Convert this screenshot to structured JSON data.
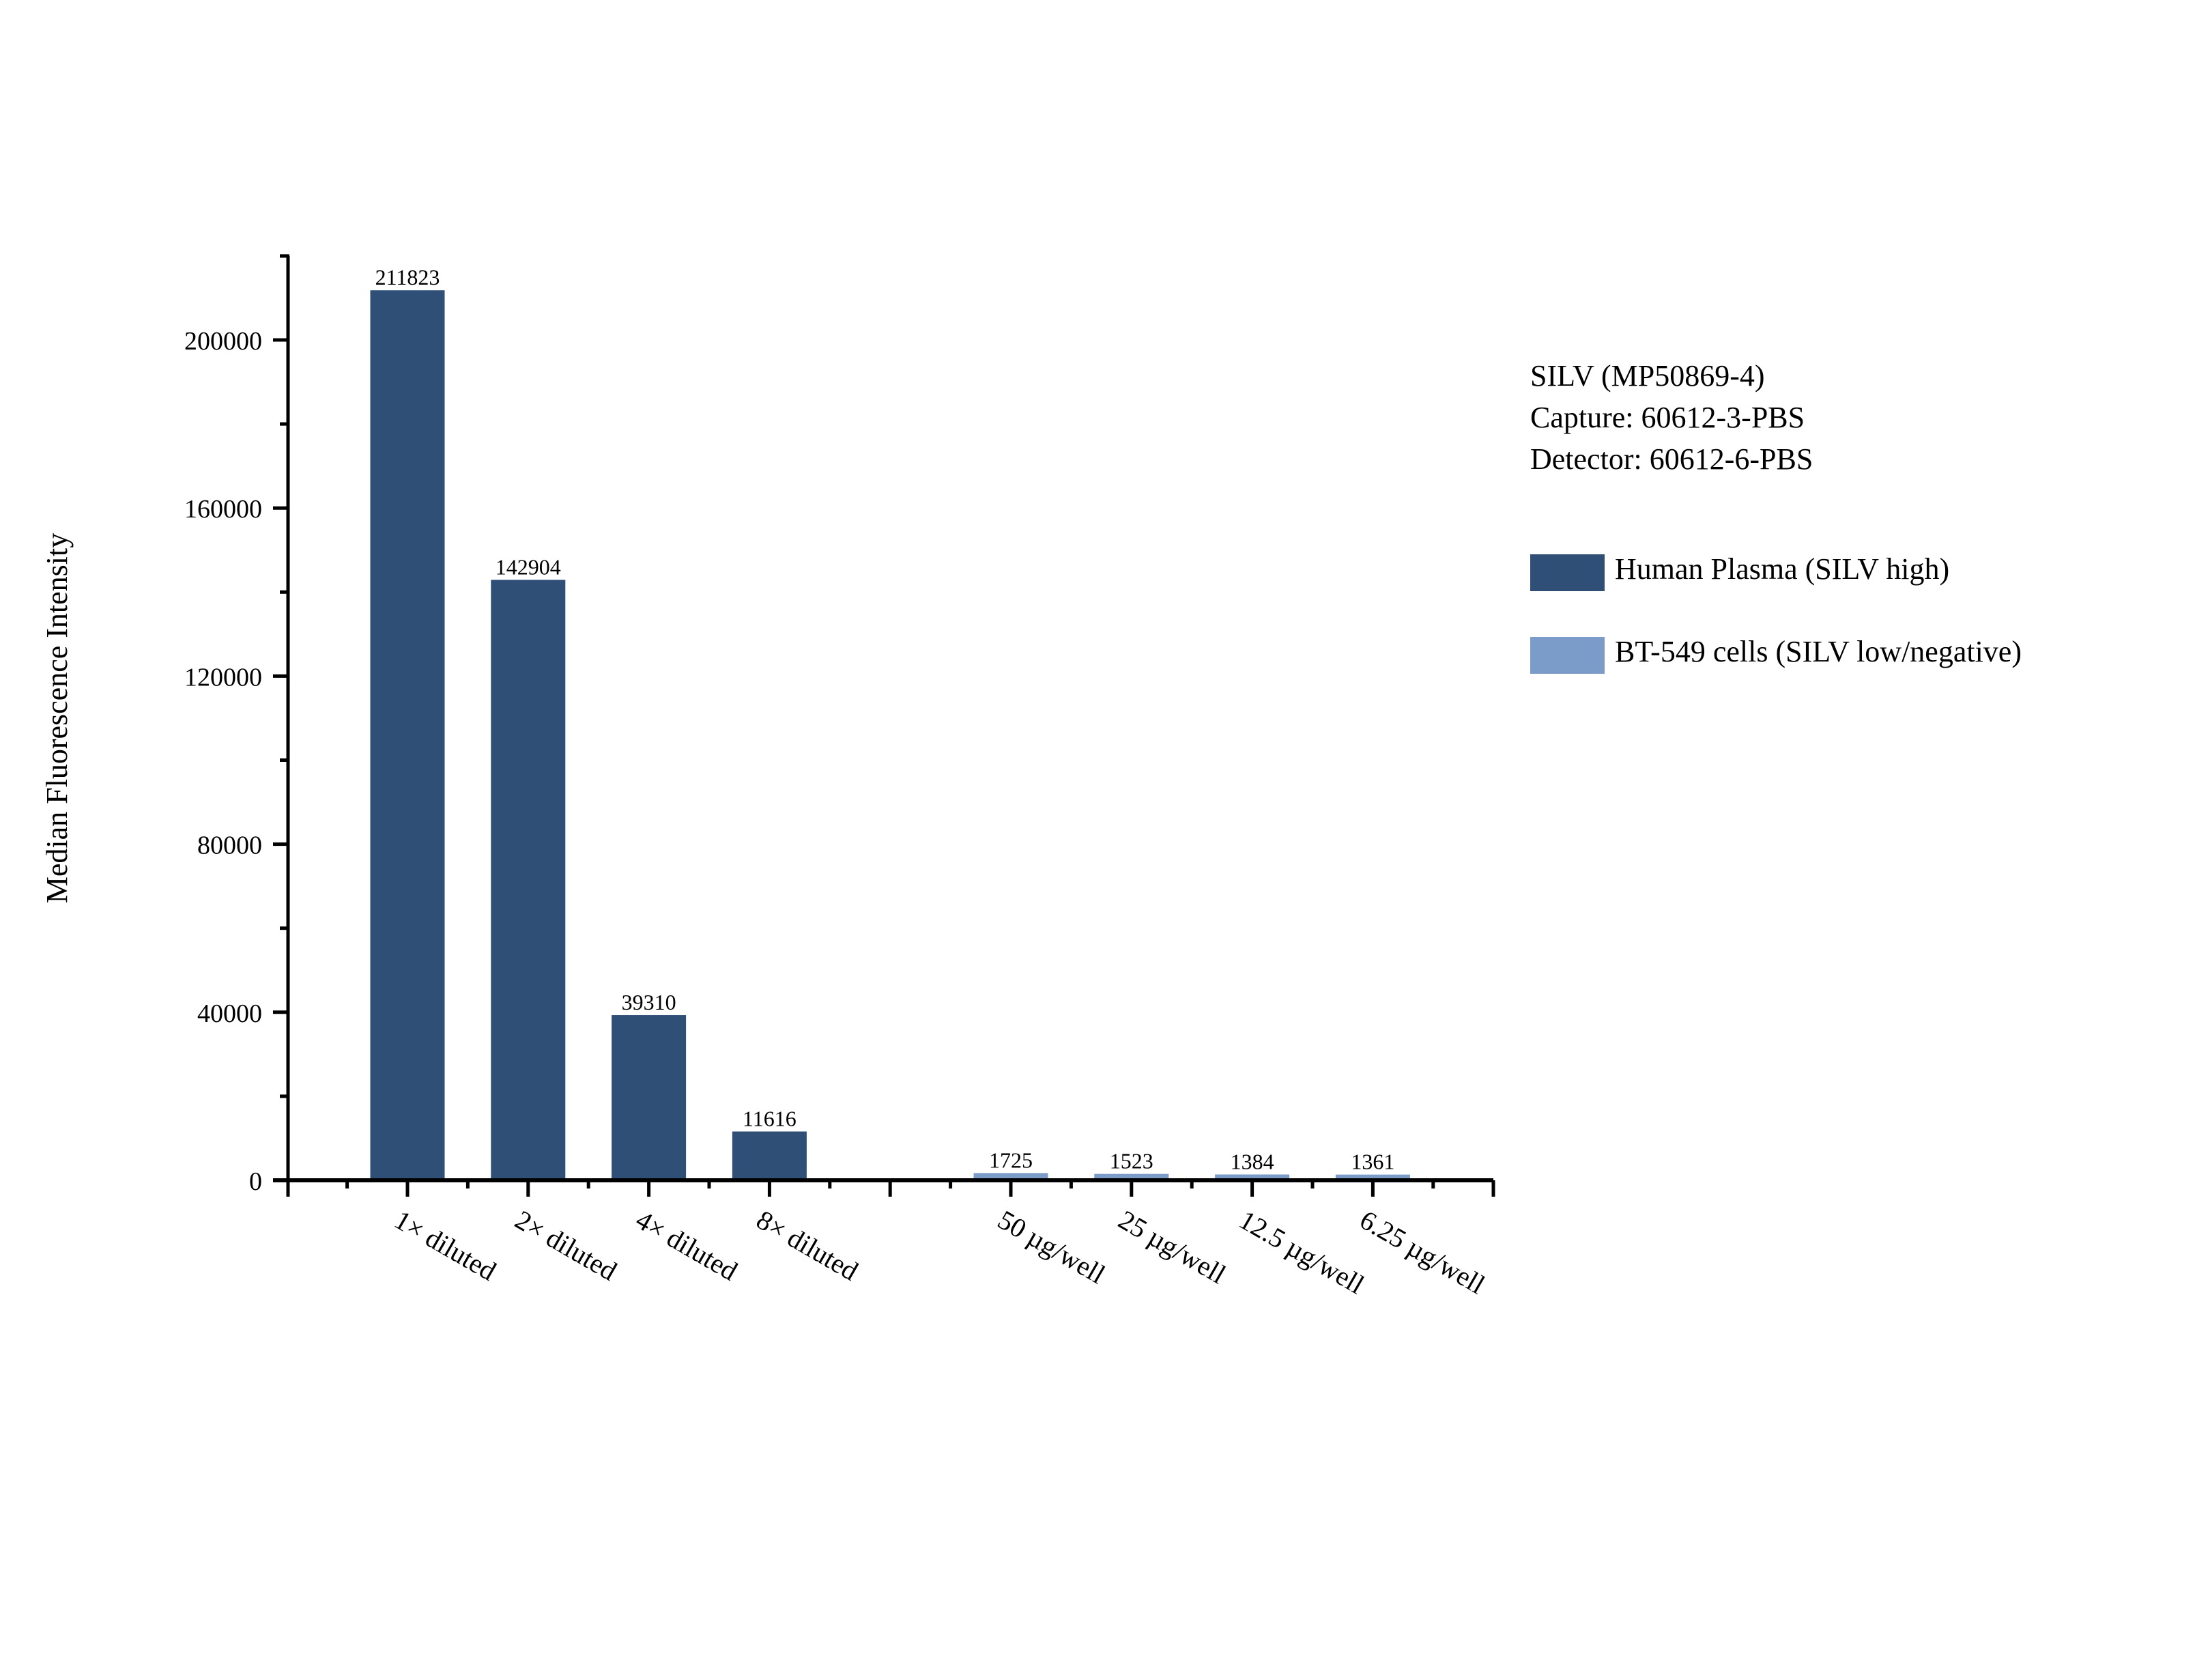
{
  "chart_data": {
    "type": "bar",
    "title": "",
    "xlabel": "",
    "ylabel": "Median Fluorescence Intensity",
    "ylim": [
      0,
      220000
    ],
    "yticks": [
      0,
      40000,
      80000,
      120000,
      160000,
      200000
    ],
    "grid": false,
    "legend_position": "right",
    "annotation_lines": [
      "SILV (MP50869-4)",
      "Capture: 60612-3-PBS",
      "Detector: 60612-6-PBS"
    ],
    "categories": [
      "1× diluted",
      "2× diluted",
      "4× diluted",
      "8× diluted",
      "",
      "50 µg/well",
      "25 µg/well",
      "12.5 µg/well",
      "6.25 µg/well"
    ],
    "series": [
      {
        "name": "Human Plasma (SILV high)",
        "color": "#2F4F77",
        "values": [
          211823,
          142904,
          39310,
          11616,
          null,
          null,
          null,
          null,
          null
        ]
      },
      {
        "name": "BT-549 cells (SILV low/negative)",
        "color": "#7B9CC9",
        "values": [
          null,
          null,
          null,
          null,
          null,
          1725,
          1523,
          1384,
          1361
        ]
      }
    ],
    "data_labels": [
      "211823",
      "142904",
      "39310",
      "11616",
      "",
      "1725",
      "1523",
      "1384",
      "1361"
    ]
  },
  "legend": {
    "title_lines": [
      "SILV (MP50869-4)",
      "Capture: 60612-3-PBS",
      "Detector: 60612-6-PBS"
    ],
    "items": [
      {
        "label": "Human Plasma (SILV high)",
        "color": "#2F4F77"
      },
      {
        "label": "BT-549 cells (SILV low/negative)",
        "color": "#7B9CC9"
      }
    ]
  }
}
